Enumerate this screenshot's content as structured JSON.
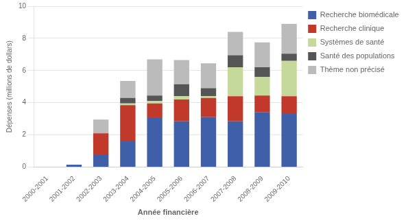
{
  "chart_data": {
    "type": "bar",
    "stacked": true,
    "categories": [
      "2000-2001",
      "2001-2002",
      "2002-2003",
      "2003-2004",
      "2004-2005",
      "2005-2006",
      "2006-2007",
      "2007-2008",
      "2008-2009",
      "2009-2010"
    ],
    "series": [
      {
        "name": "Recherche biomédicale",
        "color": "#3f5fa8",
        "values": [
          0.0,
          0.15,
          0.75,
          1.6,
          3.05,
          2.85,
          3.1,
          2.85,
          3.4,
          3.3
        ]
      },
      {
        "name": "Recherche clinique",
        "color": "#c0392b",
        "values": [
          0.0,
          0.0,
          1.35,
          2.25,
          0.9,
          1.35,
          1.2,
          1.55,
          1.05,
          1.1
        ]
      },
      {
        "name": "Systèmes de santé",
        "color": "#c5d99a",
        "values": [
          0.0,
          0.0,
          0.0,
          0.1,
          0.15,
          0.2,
          0.1,
          1.8,
          1.15,
          2.2
        ]
      },
      {
        "name": "Santé des populations",
        "color": "#555555",
        "values": [
          0.0,
          0.0,
          0.0,
          0.35,
          0.35,
          0.75,
          0.5,
          0.75,
          0.6,
          0.45
        ]
      },
      {
        "name": "Thème non précisé",
        "color": "#bbbbbb",
        "values": [
          0.0,
          0.0,
          0.85,
          1.05,
          2.25,
          1.5,
          1.55,
          1.45,
          1.55,
          1.85
        ]
      }
    ],
    "xlabel": "Année financière",
    "ylabel": "Dépenses (millions de dollars)",
    "ylim": [
      0,
      10
    ],
    "yticks": [
      0,
      2,
      4,
      6,
      8,
      10
    ],
    "grid": true,
    "legend": "right"
  }
}
